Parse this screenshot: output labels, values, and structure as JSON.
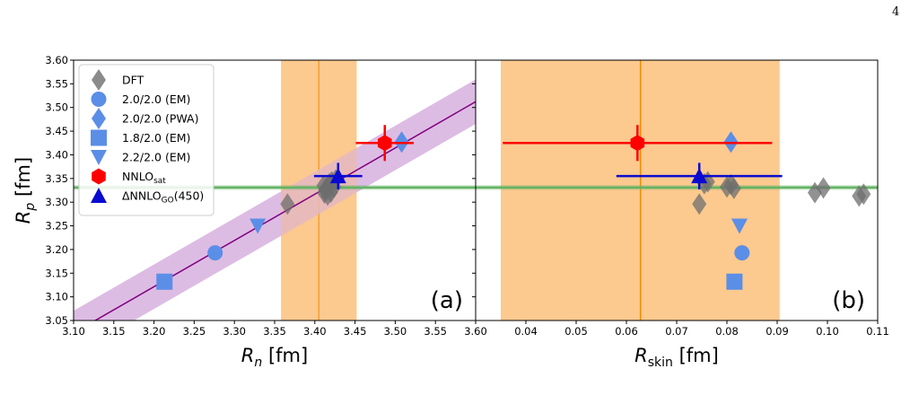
{
  "page_number": "4",
  "colors": {
    "dft": "#6e6e6e",
    "blue_light": "#5b8ee6",
    "nnlo_sat": "#ff0000",
    "nnlo_go": "#0a0ad0",
    "orange_band": "#fcc98f",
    "orange_line": "#f08c00",
    "purple_band": "#d7b0de",
    "purple_line": "#800080",
    "green_line": "#63b363"
  },
  "legend": {
    "items": [
      {
        "label": "DFT",
        "marker": "diamond",
        "color": "#6e6e6e"
      },
      {
        "label": "2.0/2.0 (EM)",
        "marker": "circle",
        "color": "#5b8ee6"
      },
      {
        "label": "2.0/2.0 (PWA)",
        "marker": "diamond",
        "color": "#5b8ee6"
      },
      {
        "label": "1.8/2.0 (EM)",
        "marker": "square",
        "color": "#5b8ee6"
      },
      {
        "label": "2.2/2.0 (EM)",
        "marker": "triangle-down",
        "color": "#5b8ee6"
      },
      {
        "label": "NNLO",
        "sub": "sat",
        "marker": "hexagon",
        "color": "#ff0000"
      },
      {
        "label": "ΔNNLO",
        "sub": "GO",
        "suffix": "(450)",
        "marker": "triangle-up",
        "color": "#0a0ad0"
      }
    ]
  },
  "chart_data": [
    {
      "type": "scatter",
      "panel_label": "(a)",
      "xlabel": "R",
      "xlabel_sub": "n",
      "xlabel_unit": " [fm]",
      "ylabel": "R",
      "ylabel_sub": "p",
      "ylabel_unit": " [fm]",
      "xlim": [
        3.1,
        3.6
      ],
      "ylim": [
        3.05,
        3.6
      ],
      "x_ticks": [
        "3.10",
        "3.15",
        "3.20",
        "3.25",
        "3.30",
        "3.35",
        "3.40",
        "3.45",
        "3.50",
        "3.55",
        "3.60"
      ],
      "y_ticks": [
        "3.05",
        "3.10",
        "3.15",
        "3.20",
        "3.25",
        "3.30",
        "3.35",
        "3.40",
        "3.45",
        "3.50",
        "3.55",
        "3.60"
      ],
      "grid": false,
      "legend_position": "top-left",
      "correlation_line": {
        "slope": 0.977,
        "intercept": -0.005,
        "band_halfwidth": 0.047
      },
      "vertical_band": {
        "center": 3.405,
        "range": [
          3.358,
          3.452
        ]
      },
      "horizontal_line": {
        "y": 3.331,
        "band": [
          3.326,
          3.336
        ]
      },
      "series": [
        {
          "name": "DFT",
          "marker": "diamond",
          "points": [
            [
              3.366,
              3.296
            ],
            [
              3.411,
              3.335
            ],
            [
              3.412,
              3.319
            ],
            [
              3.413,
              3.326
            ],
            [
              3.415,
              3.33
            ],
            [
              3.416,
              3.315
            ],
            [
              3.418,
              3.339
            ],
            [
              3.42,
              3.321
            ],
            [
              3.421,
              3.343
            ],
            [
              3.424,
              3.332
            ],
            [
              3.426,
              3.347
            ]
          ]
        },
        {
          "name": "2.0/2.0 (EM)",
          "marker": "circle",
          "points": [
            [
              3.276,
              3.193
            ]
          ]
        },
        {
          "name": "2.0/2.0 (PWA)",
          "marker": "diamond",
          "points": [
            [
              3.508,
              3.427
            ]
          ]
        },
        {
          "name": "1.8/2.0 (EM)",
          "marker": "square",
          "points": [
            [
              3.213,
              3.132
            ]
          ]
        },
        {
          "name": "2.2/2.0 (EM)",
          "marker": "triangle-down",
          "points": [
            [
              3.329,
              3.25
            ]
          ]
        },
        {
          "name": "NNLOsat",
          "marker": "hexagon",
          "points": [
            [
              3.487,
              3.425
            ]
          ],
          "xerr": [
            0.036
          ],
          "yerr": [
            0.038
          ]
        },
        {
          "name": "ΔNNLOGO(450)",
          "marker": "triangle-up",
          "points": [
            [
              3.429,
              3.355
            ]
          ],
          "xerr": [
            0.03
          ],
          "yerr": [
            0.028
          ]
        }
      ]
    },
    {
      "type": "scatter",
      "panel_label": "(b)",
      "xlabel": "R",
      "xlabel_sub": "skin",
      "xlabel_unit": " [fm]",
      "xlim": [
        0.03,
        0.11
      ],
      "ylim": [
        3.05,
        3.6
      ],
      "x_ticks": [
        "0.03",
        "0.04",
        "0.05",
        "0.06",
        "0.07",
        "0.08",
        "0.09",
        "0.10",
        "0.11"
      ],
      "grid": false,
      "vertical_band": {
        "center": 0.0628,
        "range": [
          0.035,
          0.0905
        ]
      },
      "horizontal_line": {
        "y": 3.331,
        "band": [
          3.326,
          3.336
        ]
      },
      "series": [
        {
          "name": "DFT",
          "marker": "diamond",
          "points": [
            [
              0.0745,
              3.296
            ],
            [
              0.0755,
              3.339
            ],
            [
              0.0762,
              3.343
            ],
            [
              0.08,
              3.332
            ],
            [
              0.0808,
              3.337
            ],
            [
              0.0814,
              3.329
            ],
            [
              0.0975,
              3.32
            ],
            [
              0.0992,
              3.33
            ],
            [
              0.1063,
              3.313
            ],
            [
              0.1072,
              3.317
            ]
          ]
        },
        {
          "name": "2.0/2.0 (EM)",
          "marker": "circle",
          "points": [
            [
              0.083,
              3.193
            ]
          ]
        },
        {
          "name": "2.0/2.0 (PWA)",
          "marker": "diamond",
          "points": [
            [
              0.0808,
              3.427
            ]
          ]
        },
        {
          "name": "1.8/2.0 (EM)",
          "marker": "square",
          "points": [
            [
              0.0815,
              3.132
            ]
          ]
        },
        {
          "name": "2.2/2.0 (EM)",
          "marker": "triangle-down",
          "points": [
            [
              0.0825,
              3.25
            ]
          ]
        },
        {
          "name": "NNLOsat",
          "marker": "hexagon",
          "points": [
            [
              0.0622,
              3.425
            ]
          ],
          "xerr": [
            0.0268
          ],
          "yerr": [
            0.038
          ]
        },
        {
          "name": "ΔNNLOGO(450)",
          "marker": "triangle-up",
          "points": [
            [
              0.0745,
              3.355
            ]
          ],
          "xerr": [
            0.0165
          ],
          "yerr": [
            0.028
          ]
        }
      ]
    }
  ]
}
